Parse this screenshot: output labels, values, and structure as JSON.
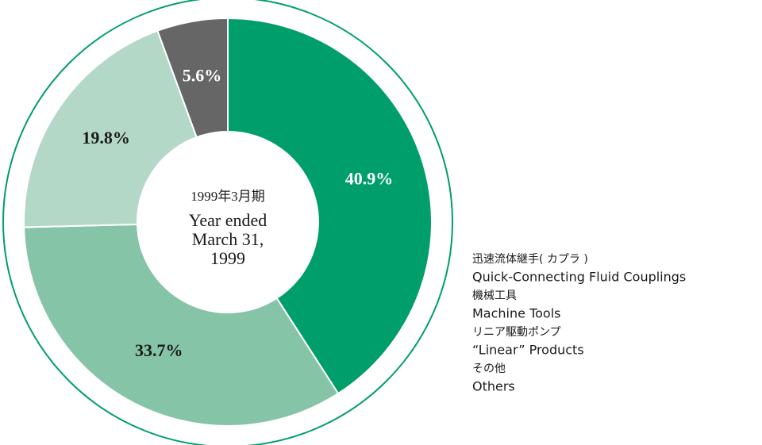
{
  "chart_data": {
    "type": "pie",
    "donut": true,
    "center_label_ja": "1999年3月期",
    "center_label": "Year ended March 31, 1999",
    "categories_ja": [
      "迅速流体継手( カプラ )",
      "機械工具",
      "リニア駆動ポンプ",
      "その他"
    ],
    "categories": [
      "Quick-Connecting Fluid Couplings",
      "Machine Tools",
      "“Linear” Products",
      "Others"
    ],
    "values": [
      40.9,
      33.7,
      19.8,
      5.6
    ],
    "value_labels": [
      "40.9%",
      "33.7%",
      "19.8%",
      "5.6%"
    ],
    "colors": [
      "#009e6b",
      "#86c4a8",
      "#b3d8c8",
      "#666666"
    ],
    "value_label_colors": [
      "#ffffff",
      "#1a1a1a",
      "#1a1a1a",
      "#ffffff"
    ]
  }
}
